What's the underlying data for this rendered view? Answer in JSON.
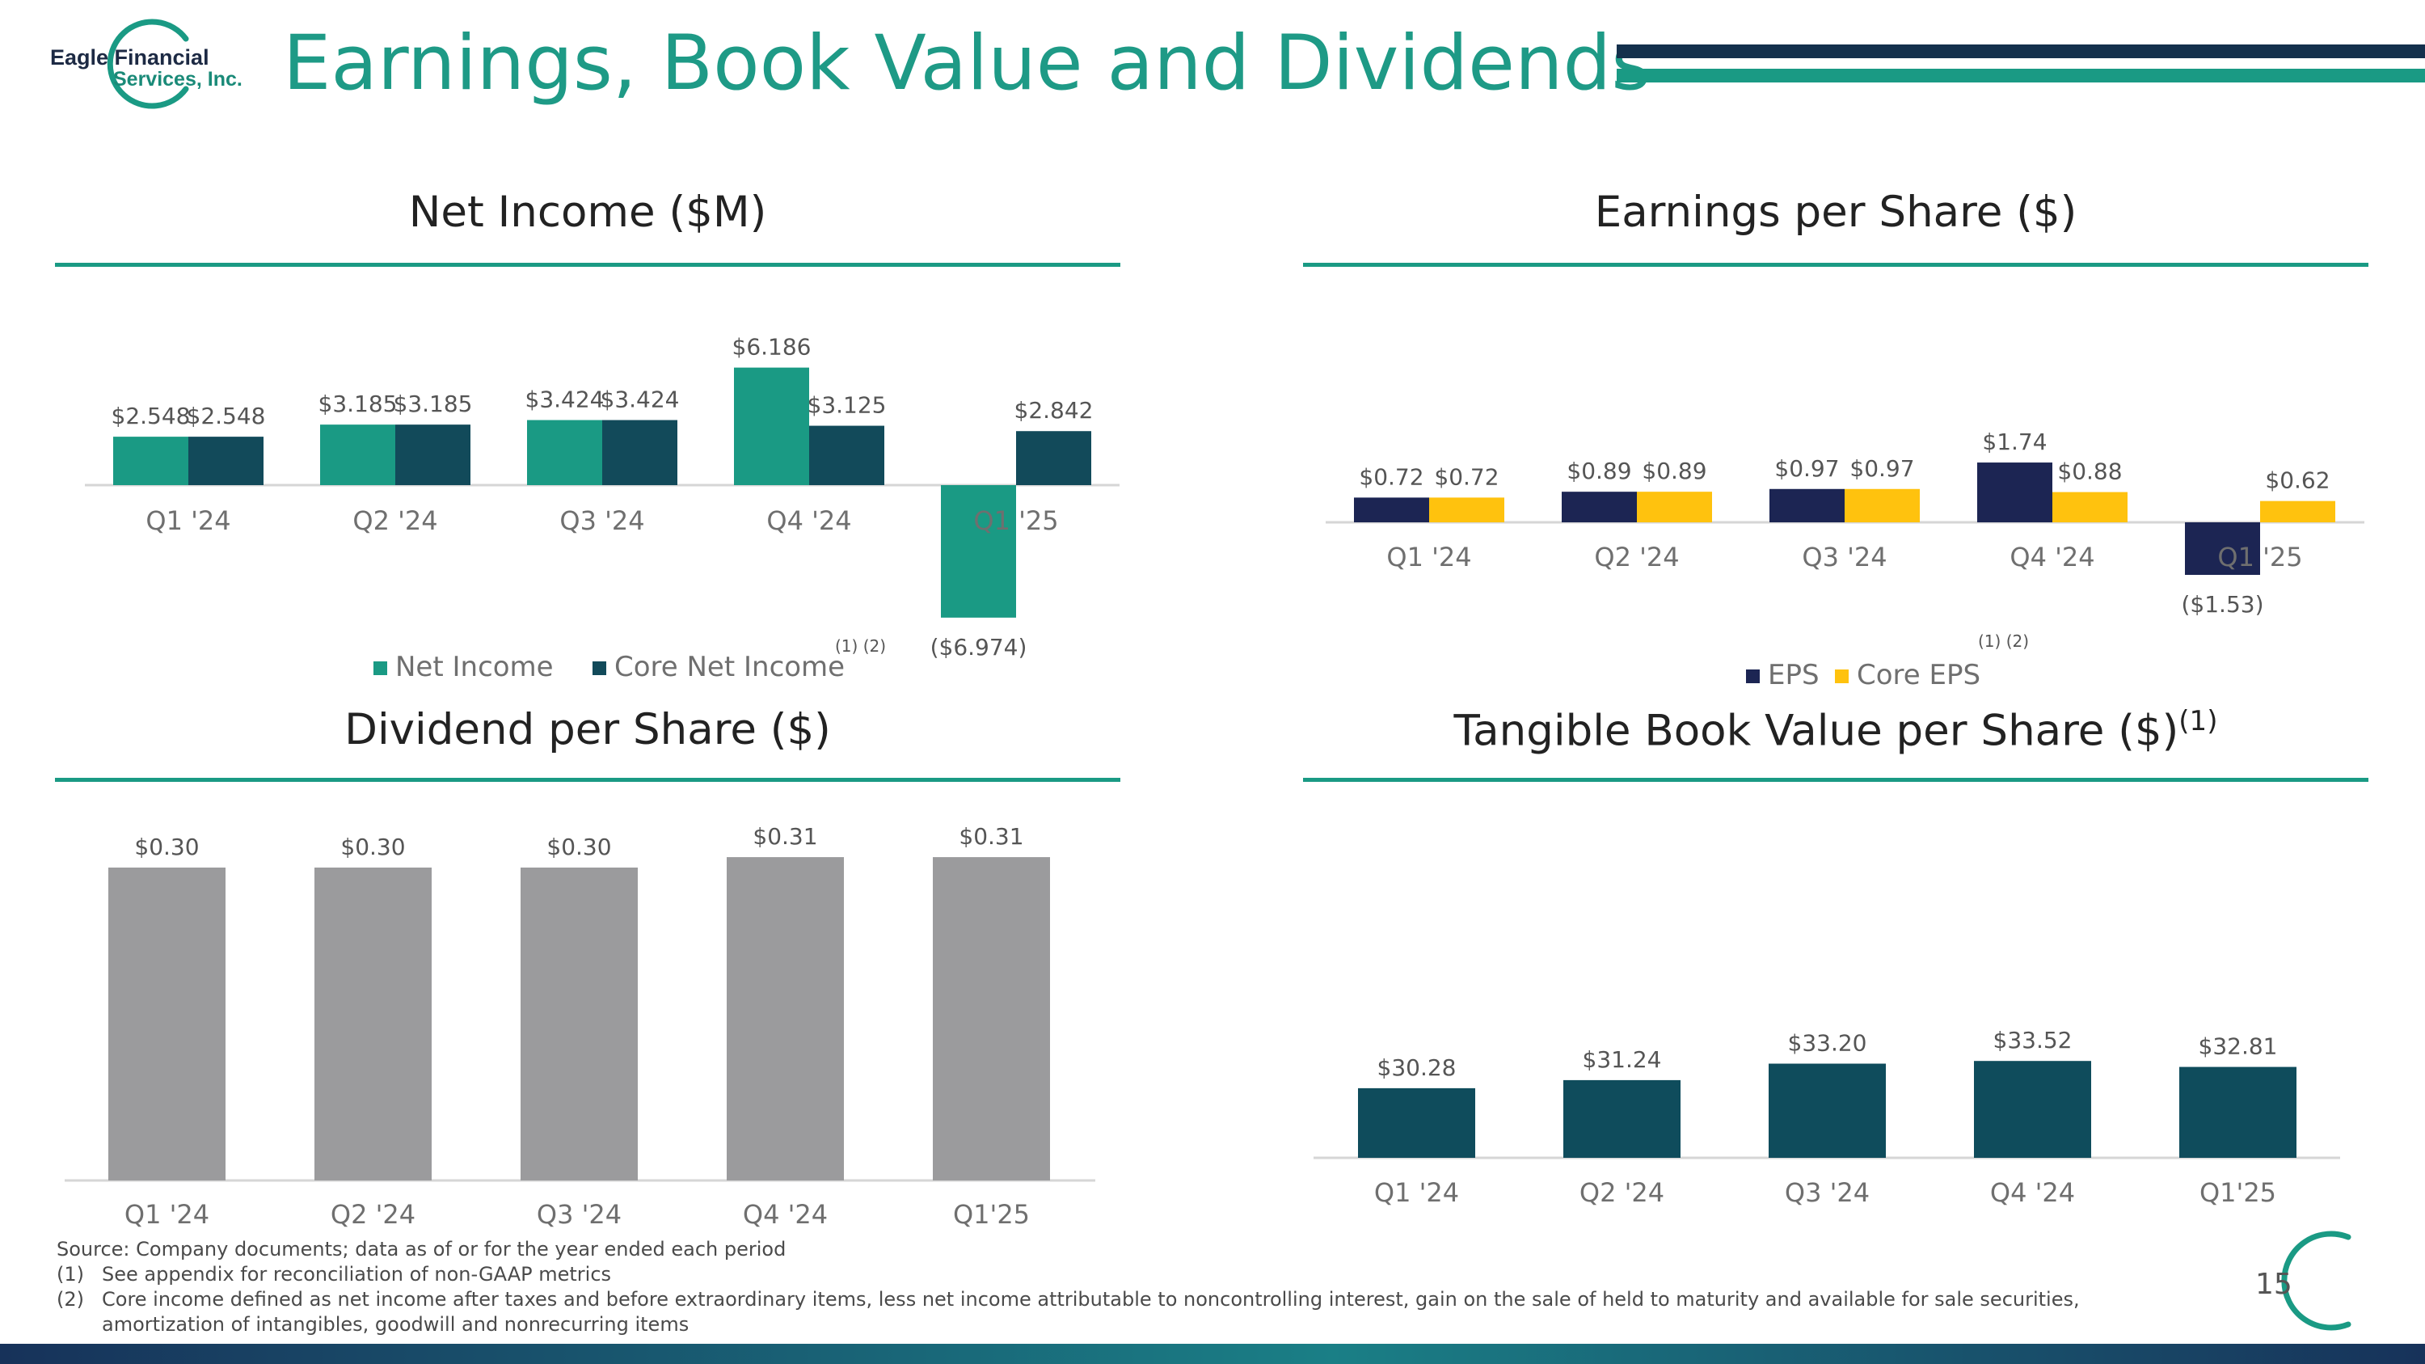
{
  "logo": {
    "line1": "Eagle Financial",
    "line2": "Services, Inc."
  },
  "slide": {
    "title": "Earnings, Book Value and Dividends",
    "page_number": "15"
  },
  "colors": {
    "teal": "#1a9a84",
    "dark_teal": "#124a5a",
    "navy": "#1c2553",
    "yellow": "#ffc20e",
    "gray": "#9b9b9d",
    "tbv_teal": "#0f4c5c"
  },
  "chart_data": [
    {
      "id": "net-income",
      "type": "bar",
      "title": "Net Income ($M)",
      "categories": [
        "Q1 '24",
        "Q2 '24",
        "Q3 '24",
        "Q4 '24",
        "Q1 '25"
      ],
      "series": [
        {
          "name": "Net Income",
          "values": [
            2.548,
            3.185,
            3.424,
            6.186,
            -6.974
          ],
          "labels": [
            "$2.548",
            "$3.185",
            "$3.424",
            "$6.186",
            "($6.974)"
          ],
          "color": "#1a9a84"
        },
        {
          "name": "Core Net Income",
          "values": [
            2.548,
            3.185,
            3.424,
            3.125,
            2.842
          ],
          "labels": [
            "$2.548",
            "$3.185",
            "$3.424",
            "$3.125",
            "$2.842"
          ],
          "color": "#124a5a"
        }
      ],
      "legend_note": "(1) (2)",
      "legend": "bottom"
    },
    {
      "id": "eps",
      "type": "bar",
      "title": "Earnings per Share ($)",
      "categories": [
        "Q1 '24",
        "Q2 '24",
        "Q3 '24",
        "Q4 '24",
        "Q1 '25"
      ],
      "series": [
        {
          "name": "EPS",
          "values": [
            0.72,
            0.89,
            0.97,
            1.74,
            -1.53
          ],
          "labels": [
            "$0.72",
            "$0.89",
            "$0.97",
            "$1.74",
            "($1.53)"
          ],
          "color": "#1c2553"
        },
        {
          "name": "Core EPS",
          "values": [
            0.72,
            0.89,
            0.97,
            0.88,
            0.62
          ],
          "labels": [
            "$0.72",
            "$0.89",
            "$0.97",
            "$0.88",
            "$0.62"
          ],
          "color": "#ffc20e"
        }
      ],
      "legend_note": "(1) (2)",
      "legend": "bottom"
    },
    {
      "id": "dividend",
      "type": "bar",
      "title": "Dividend per Share ($)",
      "categories": [
        "Q1 '24",
        "Q2 '24",
        "Q3 '24",
        "Q4 '24",
        "Q1'25"
      ],
      "series": [
        {
          "name": "",
          "values": [
            0.3,
            0.3,
            0.3,
            0.31,
            0.31
          ],
          "labels": [
            "$0.30",
            "$0.30",
            "$0.30",
            "$0.31",
            "$0.31"
          ],
          "color": "#9b9b9d"
        }
      ]
    },
    {
      "id": "tbv",
      "type": "bar",
      "title": "Tangible Book Value per Share ($)",
      "title_note": "(1)",
      "categories": [
        "Q1 '24",
        "Q2 '24",
        "Q3 '24",
        "Q4 '24",
        "Q1'25"
      ],
      "series": [
        {
          "name": "",
          "values": [
            30.28,
            31.24,
            33.2,
            33.52,
            32.81
          ],
          "labels": [
            "$30.28",
            "$31.24",
            "$33.20",
            "$33.52",
            "$32.81"
          ],
          "color": "#0f4c5c"
        }
      ]
    }
  ],
  "footnotes": {
    "source": "Source: Company documents; data as of or for the year ended each period",
    "note1_mark": "(1)",
    "note1": "See appendix for reconciliation of non-GAAP metrics",
    "note2_mark": "(2)",
    "note2_line1": "Core income defined as net income after taxes and before extraordinary items, less net income attributable to noncontrolling interest, gain on the sale of held to maturity and available for sale securities,",
    "note2_line2": "amortization of intangibles, goodwill and nonrecurring items"
  }
}
